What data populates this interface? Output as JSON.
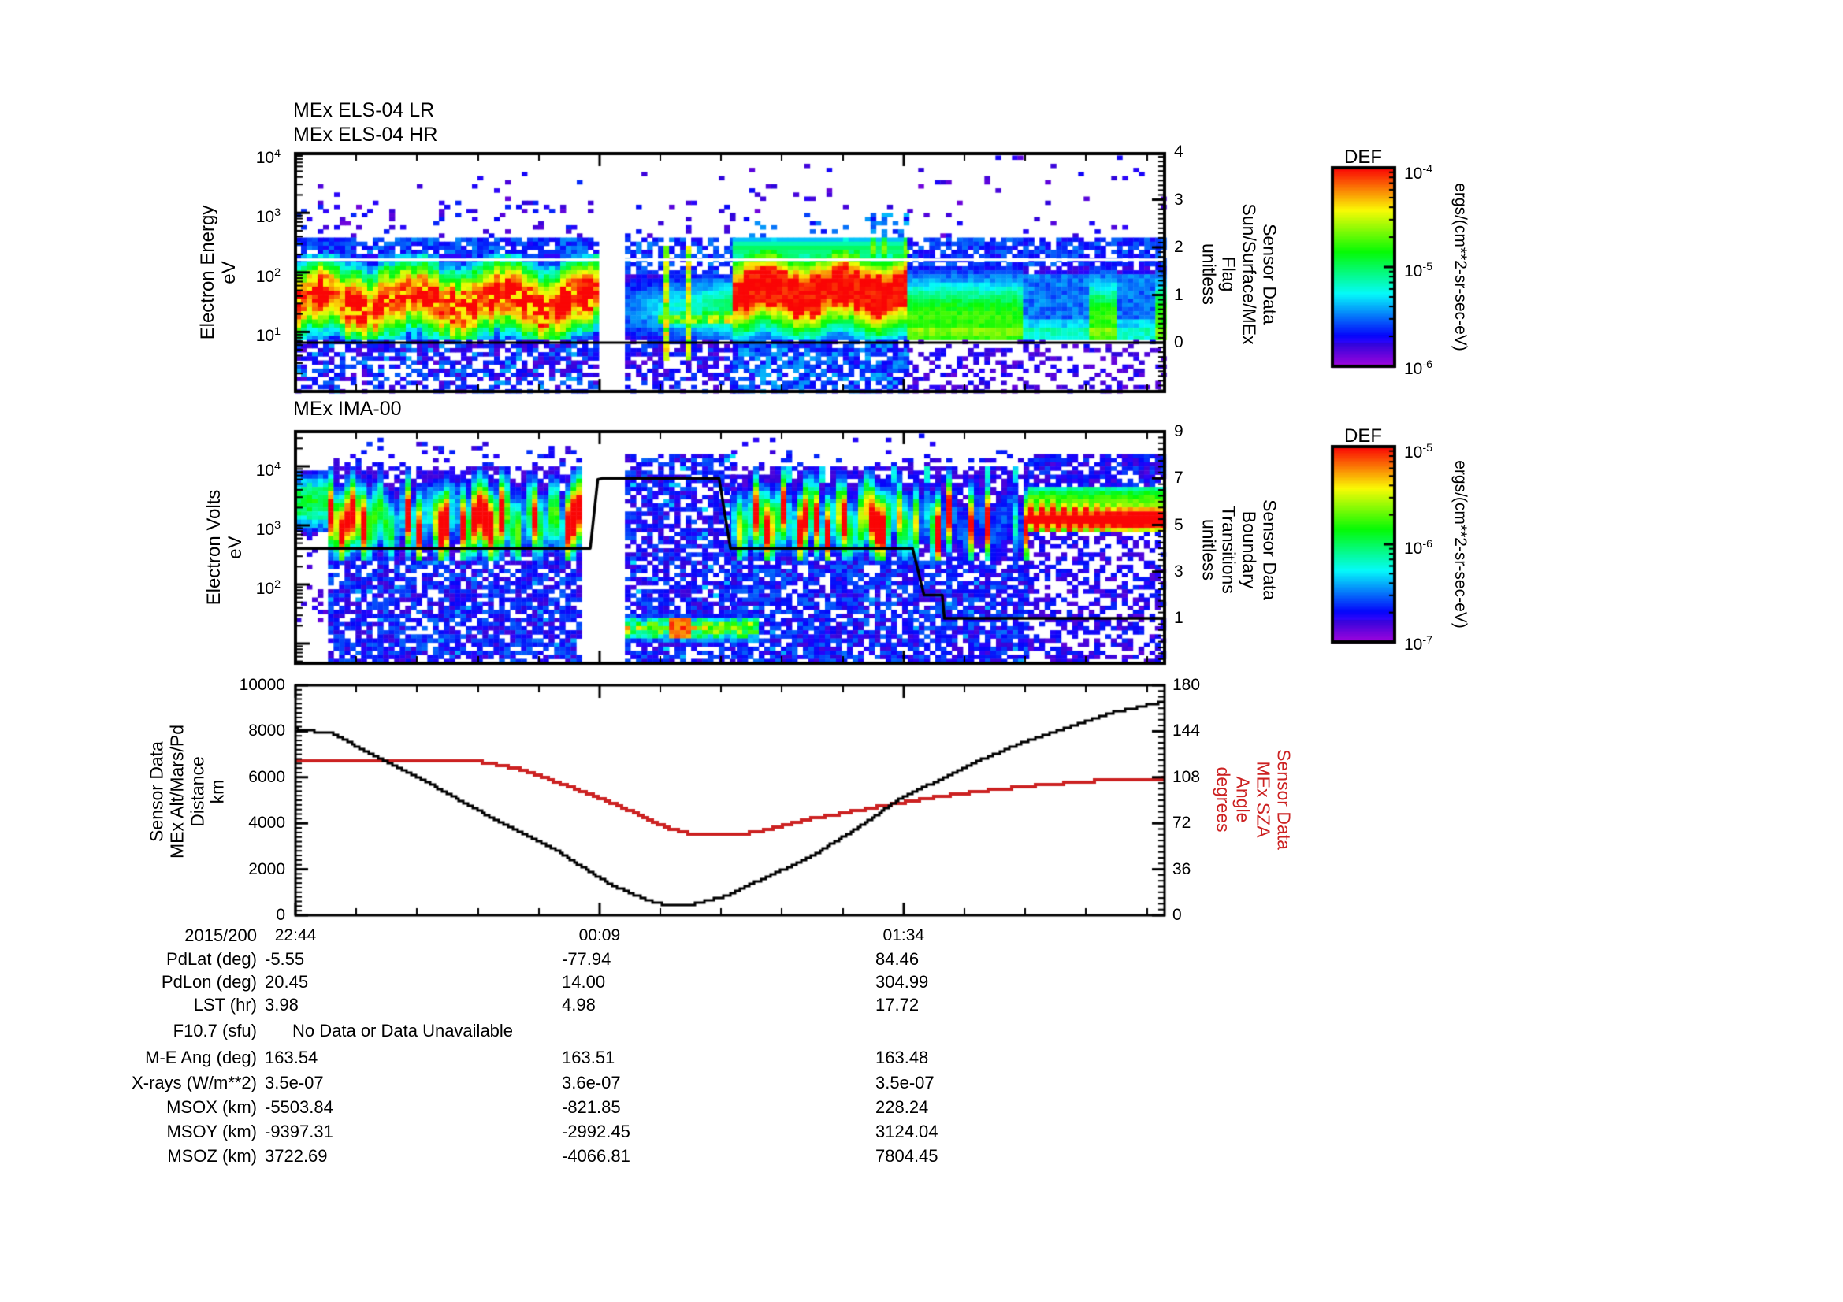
{
  "x_axis": {
    "date": "2015/200",
    "tick_labels": [
      "22:44",
      "00:09",
      "01:34"
    ],
    "tick_minutes": [
      0,
      85,
      170
    ],
    "minor_tick_minutes": 17,
    "total_minutes": 243
  },
  "els_panel": {
    "title_lines": [
      "MEx ELS-04 LR",
      "MEx ELS-04 HR"
    ],
    "y_label": "Electron Energy\neV",
    "y_tick_exponents": [
      "4",
      "3",
      "2",
      "1"
    ],
    "right_label": "Sensor Data\nSun/Surface/MEx\nFlag\nunitless",
    "right_ticks": [
      "4",
      "3",
      "2",
      "1",
      "0"
    ]
  },
  "ima_panel": {
    "title": "MEx IMA-00",
    "y_label": "Electron Volts\neV",
    "y_tick_exponents": [
      "4",
      "3",
      "2"
    ],
    "right_label": "Sensor Data\nBoundary\nTransitions\nunitless",
    "right_ticks": [
      "9",
      "7",
      "5",
      "3",
      "1"
    ]
  },
  "bottom_panel": {
    "y_label": "Sensor Data\nMEx Alt/Mars/Pd\nDistance\nkm",
    "y_ticks": [
      "10000",
      "8000",
      "6000",
      "4000",
      "2000",
      "0"
    ],
    "right_label": "Sensor Data\nMEx SZA\nAngle\ndegrees",
    "right_ticks": [
      "180",
      "144",
      "108",
      "72",
      "36",
      "0"
    ],
    "right_label_color": "#cc2222"
  },
  "colorbars": [
    {
      "title": "DEF",
      "unit": "ergs/(cm**2-sr-sec-eV)",
      "tick_exponents": [
        "-4",
        "-5",
        "-6"
      ]
    },
    {
      "title": "DEF",
      "unit": "ergs/(cm**2-sr-sec-eV)",
      "tick_exponents": [
        "-5",
        "-6",
        "-7"
      ]
    }
  ],
  "table": {
    "rows": [
      {
        "label": "PdLat (deg)",
        "values": [
          "-5.55",
          "-77.94",
          "84.46"
        ]
      },
      {
        "label": "PdLon (deg)",
        "values": [
          "20.45",
          "14.00",
          "304.99"
        ]
      },
      {
        "label": "LST (hr)",
        "values": [
          "3.98",
          "4.98",
          "17.72"
        ]
      },
      {
        "label": "F10.7 (sfu)",
        "values": [],
        "note": "No Data or Data Unavailable"
      },
      {
        "label": "M-E Ang (deg)",
        "values": [
          "163.54",
          "163.51",
          "163.48"
        ]
      },
      {
        "label": "X-rays (W/m**2)",
        "values": [
          "3.5e-07",
          "3.6e-07",
          "3.5e-07"
        ]
      },
      {
        "label": "MSOX (km)",
        "values": [
          "-5503.84",
          "-821.85",
          "228.24"
        ]
      },
      {
        "label": "MSOY (km)",
        "values": [
          "-9397.31",
          "-2992.45",
          "3124.04"
        ]
      },
      {
        "label": "MSOZ (km)",
        "values": [
          "3722.69",
          "-4066.81",
          "7804.45"
        ]
      }
    ]
  },
  "chart_data": [
    {
      "type": "heatmap",
      "title": "MEx ELS-04 LR / MEx ELS-04 HR",
      "ylabel": "Electron Energy (eV)",
      "y_log_range": [
        0,
        4.02
      ],
      "colorbar": {
        "title": "DEF",
        "unit": "ergs/(cm**2-sr-sec-eV)",
        "range_exponents": [
          -4,
          -6
        ]
      },
      "right_axis": {
        "label": "Sensor Data Sun/Surface/MEx Flag (unitless)",
        "range": [
          -1,
          4
        ]
      },
      "white_line_flag": 1.74,
      "black_line_flag": 0,
      "gaps_minutes": [
        [
          29,
          31.2
        ],
        [
          35.6,
          37.8
        ],
        [
          42.5,
          44
        ],
        [
          84.6,
          92.1
        ]
      ],
      "segments": [
        {
          "kind": "full",
          "from": 0,
          "to": 84.6,
          "desc": "intense band, red core ~10^1.2-10^2.0 eV"
        },
        {
          "kind": "weak",
          "from": 92.1,
          "to": 122.2,
          "desc": "green band with orange streak ~10^1.2 eV"
        },
        {
          "kind": "blob",
          "from": 122.2,
          "to": 171,
          "desc": "broad intense red blob 10^1.2-10^2.2 eV"
        },
        {
          "kind": "post",
          "from": 171,
          "to": 243,
          "desc": "uniform green band 10^0.2-10^2 eV, blue patches"
        }
      ],
      "blue_patches_minutes": [
        [
          202,
          221
        ],
        [
          229,
          239
        ]
      ]
    },
    {
      "type": "heatmap",
      "title": "MEx IMA-00",
      "ylabel": "Electron Volts (eV)",
      "y_log_range": [
        0.67,
        4.59
      ],
      "colorbar": {
        "title": "DEF",
        "unit": "ergs/(cm**2-sr-sec-eV)",
        "range_exponents": [
          -5,
          -7
        ]
      },
      "right_axis": {
        "label": "Sensor Data Boundary Transitions (unitless)",
        "range": [
          -1,
          9
        ]
      },
      "boundary_line_points": [
        [
          0,
          4
        ],
        [
          82.4,
          4
        ],
        [
          84.5,
          6.95
        ],
        [
          85.9,
          7
        ],
        [
          118.4,
          7
        ],
        [
          121.6,
          4
        ],
        [
          172.5,
          4
        ],
        [
          175.7,
          2
        ],
        [
          180.8,
          2
        ],
        [
          181.4,
          1
        ],
        [
          243,
          1
        ]
      ],
      "gaps_minutes": [
        [
          8,
          9.1
        ],
        [
          79.5,
          92.1
        ]
      ],
      "segments": [
        {
          "kind": "stub",
          "from": 0,
          "to": 8,
          "desc": "green patch 10^3-10^3.9 eV at left edge"
        },
        {
          "kind": "stripes",
          "from": 9.1,
          "to": 79.5,
          "desc": "vertical red/green stripes 10^2.5-10^3.8 eV"
        },
        {
          "kind": "speckb",
          "from": 92.1,
          "to": 121.8,
          "desc": "blue speckle with low band ~10^1.25 eV"
        },
        {
          "kind": "stripes2",
          "from": 121.8,
          "to": 204.8,
          "desc": "vertical stripes resume, thinning to right"
        },
        {
          "kind": "bands",
          "from": 204.8,
          "to": 243,
          "desc": "horizontal bands, red ~10^3.1 eV"
        }
      ]
    },
    {
      "type": "line",
      "x_axis": {
        "date": "2015/200",
        "tick_labels": [
          "22:44",
          "00:09",
          "01:34"
        ],
        "tick_minutes": [
          0,
          85,
          170
        ],
        "range_minutes": [
          0,
          243
        ]
      },
      "ylim_left": [
        0,
        10000
      ],
      "ylim_right": [
        0,
        180
      ],
      "series": [
        {
          "name": "Sensor Data MEx Alt/Mars/Pd Distance (km)",
          "color": "#000000",
          "axis": "left",
          "points": [
            [
              0,
              8100
            ],
            [
              10,
              7900
            ],
            [
              25,
              6700
            ],
            [
              33,
              6100
            ],
            [
              48,
              4800
            ],
            [
              60,
              3800
            ],
            [
              72,
              2900
            ],
            [
              80,
              2100
            ],
            [
              88,
              1340
            ],
            [
              95,
              870
            ],
            [
              99,
              620
            ],
            [
              103,
              470
            ],
            [
              105,
              430
            ],
            [
              110,
              430
            ],
            [
              115,
              640
            ],
            [
              121,
              890
            ],
            [
              130,
              1560
            ],
            [
              143,
              2470
            ],
            [
              155,
              3600
            ],
            [
              169,
              5080
            ],
            [
              180,
              5900
            ],
            [
              191,
              6730
            ],
            [
              203,
              7500
            ],
            [
              215,
              8130
            ],
            [
              228,
              8800
            ],
            [
              243,
              9300
            ]
          ]
        },
        {
          "name": "Sensor Data MEx SZA Angle (degrees)",
          "color": "#cc2222",
          "axis": "right",
          "points": [
            [
              0,
              121
            ],
            [
              40,
              120.5
            ],
            [
              52,
              120
            ],
            [
              63,
              114
            ],
            [
              72,
              105
            ],
            [
              81,
              96
            ],
            [
              90,
              86
            ],
            [
              97,
              77
            ],
            [
              104,
              68
            ],
            [
              110,
              64
            ],
            [
              115,
              63
            ],
            [
              123,
              63
            ],
            [
              130,
              66
            ],
            [
              143,
              75
            ],
            [
              155,
              81
            ],
            [
              169,
              88
            ],
            [
              180,
              93
            ],
            [
              191,
              97
            ],
            [
              205,
              101
            ],
            [
              222,
              105
            ],
            [
              243,
              107
            ]
          ]
        }
      ]
    }
  ]
}
